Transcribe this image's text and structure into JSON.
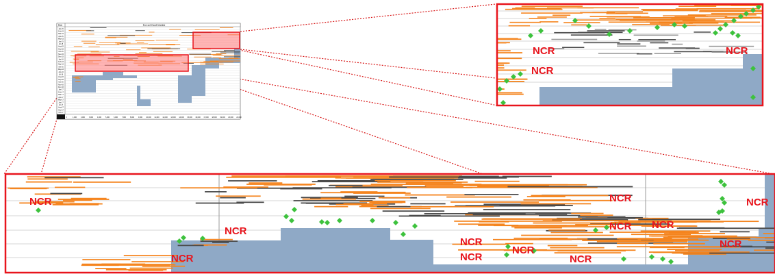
{
  "overview": {
    "title": "Forward Zoned Schedule",
    "col_header": "Date",
    "row_labels": [
      "Jan-15",
      "Feb-15",
      "Mar-15",
      "Apr-15",
      "May-15",
      "Jun-15",
      "Jul-15",
      "Aug-15",
      "Sep-15",
      "Oct-15",
      "Nov-15",
      "Dec-15",
      "Jan-16",
      "Feb-16",
      "Mar-16",
      "Apr-16",
      "May-16",
      "Jun-16",
      "Jul-16",
      "Aug-16",
      "Sep-16",
      "Oct-16",
      "Nov-16",
      "Dec-16",
      "Jan-17",
      "Feb-17",
      "Mar-17",
      "Apr-17",
      "May-17",
      "Jun-17",
      "Jul-17",
      "Aug-17",
      "Sep-17",
      "Oct-17"
    ],
    "x_ticks": [
      "0",
      "1,000",
      "2,000",
      "3,000",
      "4,000",
      "5,000",
      "6,000",
      "7,000",
      "8,000",
      "9,000",
      "10,000",
      "11,000",
      "12,000",
      "13,000",
      "14,000",
      "15,000",
      "16,000",
      "17,000",
      "18,000",
      "19,000",
      "20,000",
      "21,000"
    ]
  },
  "annotations": {
    "ncr_label": "NCR"
  },
  "colors": {
    "orange": "#f5851f",
    "blue": "#8fa9c6",
    "green": "#3dc23d",
    "red": "#e8141c",
    "dark": "#4a4a4a"
  }
}
